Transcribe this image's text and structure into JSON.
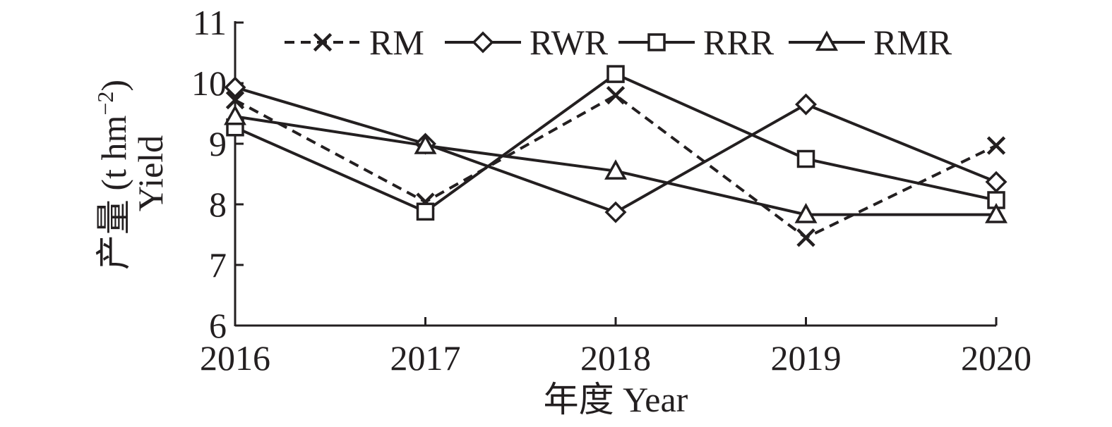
{
  "chart_data": {
    "type": "line",
    "title": "",
    "xlabel": "年度 Year",
    "ylabel": {
      "line1": "产量 (t hm",
      "superscript": "−2",
      "line1_end": ")",
      "line2": "Yield"
    },
    "x": [
      "2016",
      "2017",
      "2018",
      "2019",
      "2020"
    ],
    "ylim": [
      6,
      11
    ],
    "yticks": [
      6,
      7,
      8,
      9,
      10,
      11
    ],
    "grid": false,
    "legend_position": "top",
    "series": [
      {
        "name": "RM",
        "marker": "x",
        "dash": true,
        "values": [
          9.72,
          8.04,
          9.8,
          7.45,
          8.97
        ]
      },
      {
        "name": "RWR",
        "marker": "diamond",
        "dash": false,
        "values": [
          9.93,
          9.0,
          7.87,
          9.65,
          8.37
        ]
      },
      {
        "name": "RRR",
        "marker": "square",
        "dash": false,
        "values": [
          9.27,
          7.88,
          10.15,
          8.75,
          8.07
        ]
      },
      {
        "name": "RMR",
        "marker": "triangle",
        "dash": false,
        "values": [
          9.45,
          8.97,
          8.55,
          7.83,
          7.83
        ]
      }
    ]
  }
}
